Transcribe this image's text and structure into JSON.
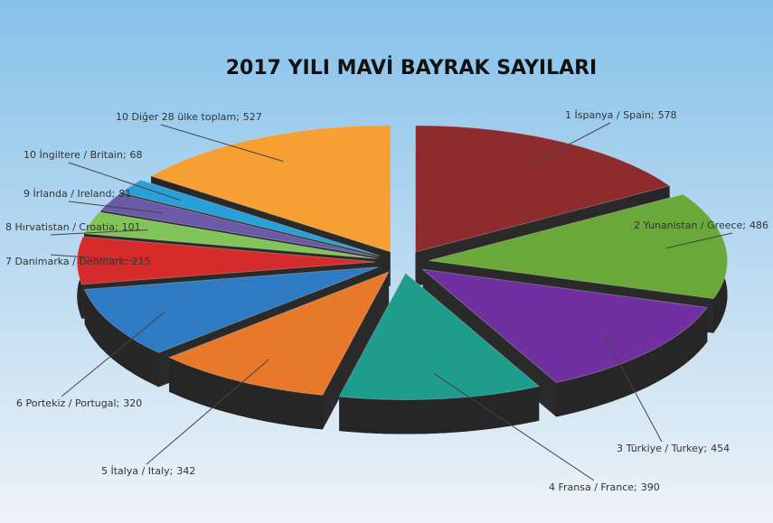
{
  "chart_data": {
    "type": "pie3d",
    "title": "2017 YILI MAVİ BAYRAK SAYILARI",
    "categories": [
      "1 İspanya / Spain;",
      "2 Yunanistan / Greece;",
      "3 Türkiye / Turkey;",
      "4 Fransa / France;",
      "5 İtalya / Italy;",
      "6 Portekiz / Portugal;",
      "7 Danimarka / Denmark;",
      "8 Hırvatistan / Croatia;",
      "9 İrlanda / Ireland;",
      "10 İngiltere / Britain;",
      "10 Diğer 28 ülke toplam;"
    ],
    "values": [
      578,
      486,
      454,
      390,
      342,
      320,
      215,
      101,
      81,
      68,
      527
    ],
    "colors": [
      "#8e2b2f",
      "#6aa83a",
      "#7030a0",
      "#1e9c8c",
      "#e8782a",
      "#2e7bc4",
      "#d62b2b",
      "#80c45a",
      "#6a5aa8",
      "#2aa0d8",
      "#f6a033"
    ]
  }
}
